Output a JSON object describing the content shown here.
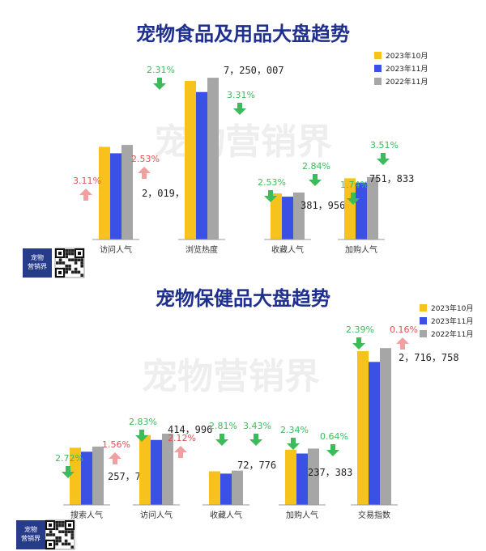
{
  "colors": {
    "title": "#1f2f8f",
    "up": "#3dbb5a",
    "down": "#e0504e",
    "baseline": "#999999"
  },
  "watermark": "宠物营销界",
  "logo": {
    "line1": "宠物",
    "line2": "营销界"
  },
  "chart_data": [
    {
      "type": "bar",
      "title": "宠物食品及用品大盘趋势",
      "series": [
        {
          "name": "2023年10月",
          "color": "#f7c21b"
        },
        {
          "name": "2023年11月",
          "color": "#3b51e6"
        },
        {
          "name": "2022年11月",
          "color": "#a6a6a6"
        }
      ],
      "categories": [
        {
          "label": "访问人气",
          "values": [
            2019839,
            2019839,
            2019839
          ],
          "value_label": "2，019，839",
          "changes": [
            {
              "text": "3.11%",
              "dir": "up"
            },
            {
              "text": "2.53%",
              "dir": "up"
            }
          ]
        },
        {
          "label": "浏览热度",
          "values": [
            7250007,
            7250007,
            7250007
          ],
          "value_label": "7，250，007",
          "changes": [
            {
              "text": "2.31%",
              "dir": "down"
            },
            {
              "text": "3.31%",
              "dir": "down"
            }
          ]
        },
        {
          "label": "收藏人气",
          "values": [
            381956,
            381956,
            381956
          ],
          "value_label": "381，956",
          "changes": [
            {
              "text": "2.53%",
              "dir": "down"
            },
            {
              "text": "2.84%",
              "dir": "down"
            }
          ]
        },
        {
          "label": "加购人气",
          "values": [
            751833,
            751833,
            751833
          ],
          "value_label": "751，833",
          "changes": [
            {
              "text": "1.74%",
              "dir": "down"
            },
            {
              "text": "3.51%",
              "dir": "down"
            }
          ]
        }
      ]
    },
    {
      "type": "bar",
      "title": "宠物保健品大盘趋势",
      "series": [
        {
          "name": "2023年10月",
          "color": "#f7c21b"
        },
        {
          "name": "2023年11月",
          "color": "#3b51e6"
        },
        {
          "name": "2022年11月",
          "color": "#a6a6a6"
        }
      ],
      "categories": [
        {
          "label": "搜索人气",
          "values": [
            257751,
            257751,
            257751
          ],
          "value_label": "257，751",
          "changes": [
            {
              "text": "2.72%",
              "dir": "down"
            },
            {
              "text": "1.56%",
              "dir": "up"
            }
          ]
        },
        {
          "label": "访问人气",
          "values": [
            414996,
            414996,
            414996
          ],
          "value_label": "414，996",
          "changes": [
            {
              "text": "2.83%",
              "dir": "down"
            },
            {
              "text": "2.12%",
              "dir": "up"
            }
          ]
        },
        {
          "label": "收藏人气",
          "values": [
            72776,
            72776,
            72776
          ],
          "value_label": "72，776",
          "changes": [
            {
              "text": "2.81%",
              "dir": "down"
            },
            {
              "text": "3.43%",
              "dir": "down"
            }
          ]
        },
        {
          "label": "加购人气",
          "values": [
            237383,
            237383,
            237383
          ],
          "value_label": "237，383",
          "changes": [
            {
              "text": "2.34%",
              "dir": "down"
            },
            {
              "text": "0.64%",
              "dir": "down"
            }
          ]
        },
        {
          "label": "交易指数",
          "values": [
            2716758,
            2716758,
            2716758
          ],
          "value_label": "2，716，758",
          "changes": [
            {
              "text": "2.39%",
              "dir": "down"
            },
            {
              "text": "0.16%",
              "dir": "up"
            }
          ]
        }
      ]
    }
  ]
}
